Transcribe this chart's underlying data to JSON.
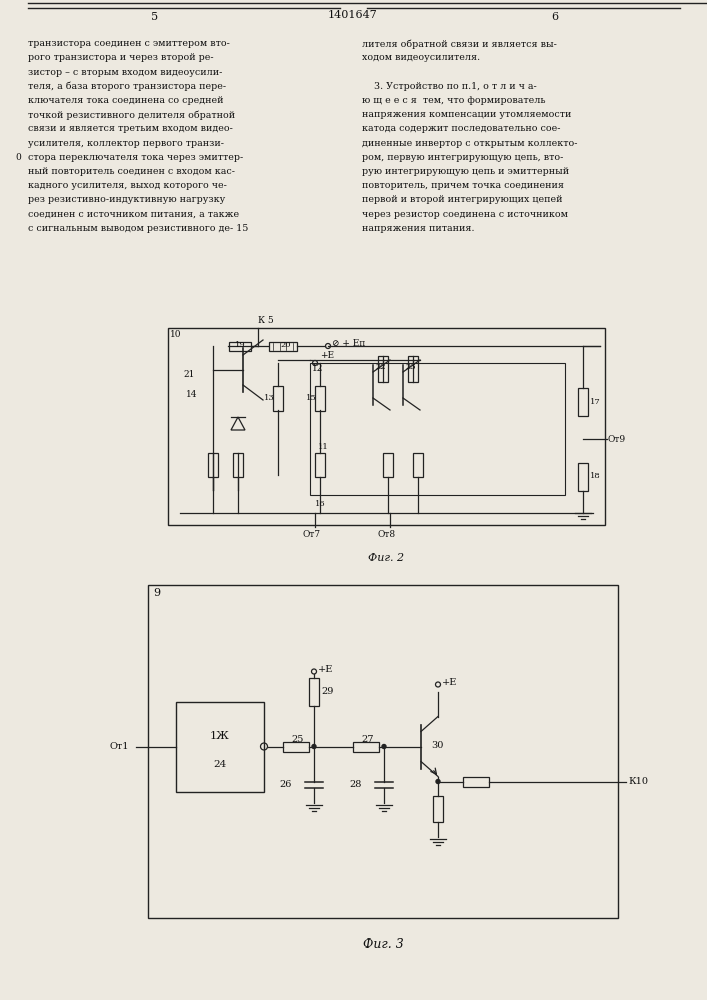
{
  "page_number_left": "5",
  "page_number_center": "1401647",
  "page_number_right": "6",
  "text_left_lines": [
    "транзистора соединен с эмиттером вто-",
    "рого транзистора и через второй ре-",
    "зистор – с вторым входом видеоусили-",
    "теля, а база второго транзистора пере-",
    "ключателя тока соединена со средней",
    "точкой резистивного делителя обратной",
    "связи и является третьим входом видео-",
    "усилителя, коллектор первого транзи-",
    "стора переключателя тока через эмиттер-",
    "ный повторитель соединен с входом кас-",
    "кадного усилителя, выход которого че-",
    "рез резистивно-индуктивную нагрузку",
    "соединен с источником питания, а также",
    "с сигнальным выводом резистивного де- 15"
  ],
  "text_right_lines": [
    "лителя обратной связи и является вы-",
    "ходом видеоусилителя.",
    "",
    "    3. Устройство по п.1, о т л и ч а-",
    "ю щ е е с я  тем, что формирователь",
    "напряжения компенсации утомляемости",
    "катода содержит последовательно сое-",
    "диненные инвертор с открытым коллекто-",
    "ром, первую интегрирующую цепь, вто-",
    "рую интегрирующую цепь и эмиттерный",
    "повторитель, причем точка соединения",
    "первой и второй интегрирующих цепей",
    "через резистор соединена с источником",
    "напряжения питания."
  ],
  "fig2_caption": "Фиг. 2",
  "fig3_caption": "Фиг. 3",
  "bg_color": "#ede9e0",
  "line_color": "#222222",
  "text_color": "#111111"
}
